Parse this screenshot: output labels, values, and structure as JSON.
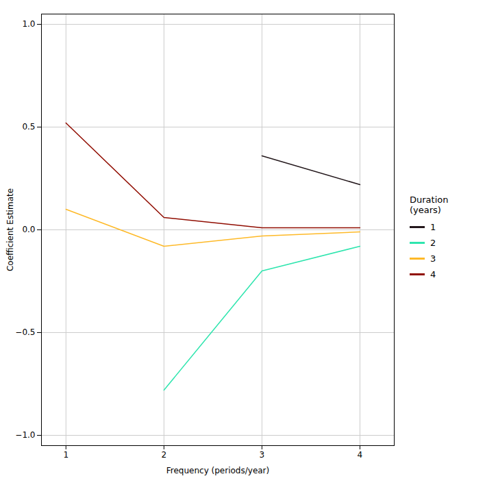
{
  "chart_data": {
    "type": "line",
    "xlabel": "Frequency (periods/year)",
    "ylabel": "Coefficient Estimate",
    "legend_title": "Duration\n(years)",
    "legend": "right",
    "grid": true,
    "xlim": [
      0.75,
      4.35
    ],
    "ylim": [
      -1.05,
      1.05
    ],
    "xticks": [
      1,
      2,
      3,
      4
    ],
    "yticks": [
      {
        "value": -1.0,
        "label": "−1.0"
      },
      {
        "value": -0.5,
        "label": "−0.5"
      },
      {
        "value": 0.0,
        "label": "0.0"
      },
      0.5,
      {
        "value": 1.0,
        "label": "1.0"
      }
    ],
    "series": [
      {
        "name": "1",
        "x": [
          3,
          4
        ],
        "values": [
          0.36,
          0.22
        ]
      },
      {
        "name": "2",
        "x": [
          2,
          3,
          4
        ],
        "values": [
          -0.78,
          -0.2,
          -0.08
        ]
      },
      {
        "name": "3",
        "x": [
          1,
          2,
          3,
          4
        ],
        "values": [
          0.1,
          -0.08,
          -0.03,
          -0.01
        ]
      },
      {
        "name": "4",
        "x": [
          1,
          2,
          3,
          4
        ],
        "values": [
          0.52,
          0.06,
          0.01,
          0.01
        ]
      }
    ]
  }
}
